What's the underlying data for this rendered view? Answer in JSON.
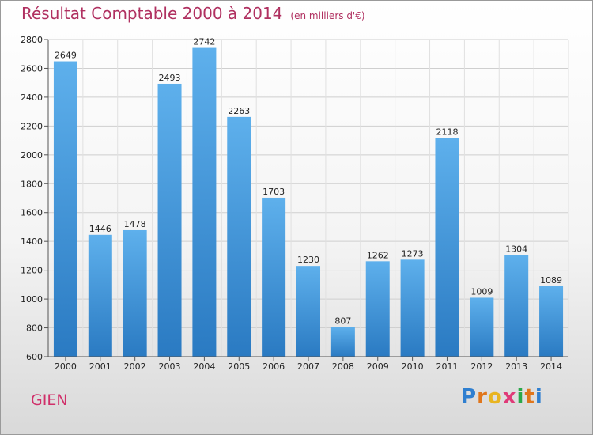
{
  "chart_data": {
    "type": "bar",
    "title": "Résultat Comptable 2000 à 2014",
    "subtitle": "(en milliers d'€)",
    "xlabel": "",
    "ylabel": "",
    "categories": [
      "2000",
      "2001",
      "2002",
      "2003",
      "2004",
      "2005",
      "2006",
      "2007",
      "2008",
      "2009",
      "2010",
      "2011",
      "2012",
      "2013",
      "2014"
    ],
    "values": [
      2649,
      1446,
      1478,
      2493,
      2742,
      2263,
      1703,
      1230,
      807,
      1262,
      1273,
      2118,
      1009,
      1304,
      1089
    ],
    "ylim": [
      600,
      2800
    ],
    "yticks": [
      600,
      800,
      1000,
      1200,
      1400,
      1600,
      1800,
      2000,
      2200,
      2400,
      2600,
      2800
    ],
    "grid": true,
    "bar_color": "#3a8fd6"
  },
  "place": "GIEN",
  "brand": {
    "letters": [
      "P",
      "r",
      "o",
      "x",
      "i",
      "t",
      "i"
    ],
    "colors": [
      "#2f7fd0",
      "#e0761c",
      "#e8b420",
      "#e03a78",
      "#2aa84a",
      "#e0761c",
      "#2f7fd0"
    ]
  }
}
